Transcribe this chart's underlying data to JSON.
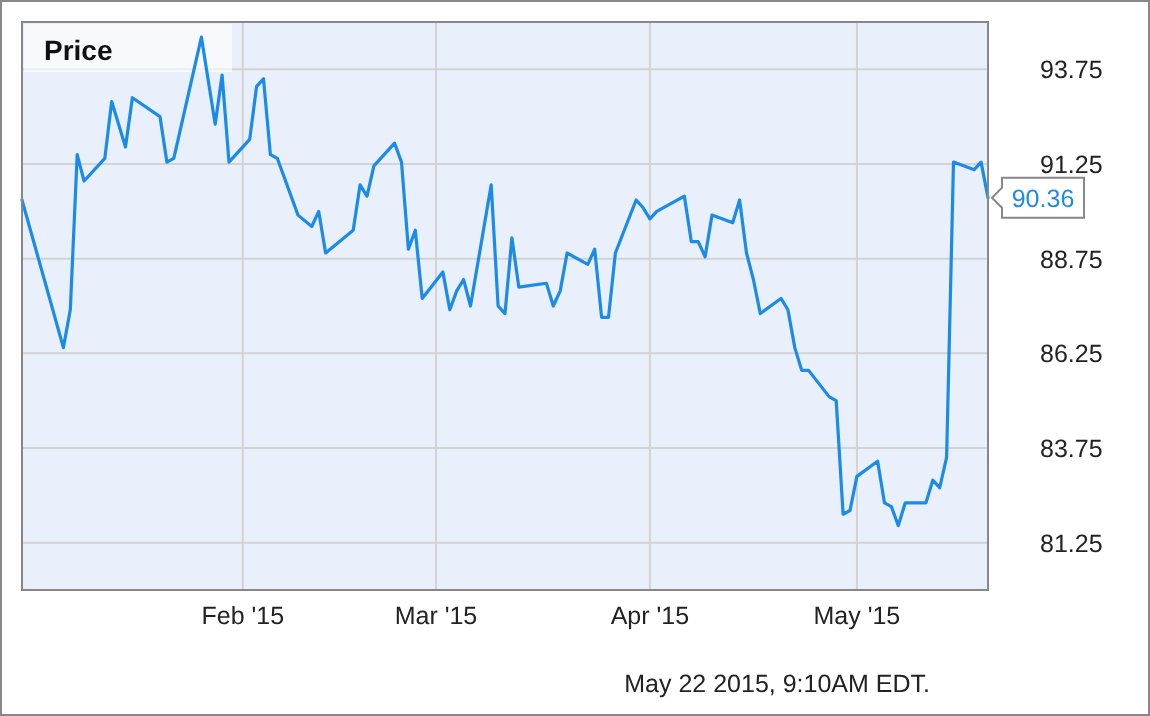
{
  "chart_data": {
    "type": "line",
    "title": "Price",
    "annotations": [
      "May 22 2015, 9:10AM EDT."
    ],
    "x": [
      "2014-12-31",
      "2015-01-06",
      "2015-01-07",
      "2015-01-08",
      "2015-01-09",
      "2015-01-12",
      "2015-01-13",
      "2015-01-15",
      "2015-01-16",
      "2015-01-20",
      "2015-01-21",
      "2015-01-22",
      "2015-01-26",
      "2015-01-28",
      "2015-01-29",
      "2015-01-30",
      "2015-02-02",
      "2015-02-03",
      "2015-02-04",
      "2015-02-05",
      "2015-02-06",
      "2015-02-09",
      "2015-02-11",
      "2015-02-12",
      "2015-02-13",
      "2015-02-17",
      "2015-02-18",
      "2015-02-19",
      "2015-02-20",
      "2015-02-23",
      "2015-02-24",
      "2015-02-25",
      "2015-02-26",
      "2015-02-27",
      "2015-03-02",
      "2015-03-03",
      "2015-03-04",
      "2015-03-05",
      "2015-03-06",
      "2015-03-09",
      "2015-03-10",
      "2015-03-11",
      "2015-03-12",
      "2015-03-13",
      "2015-03-17",
      "2015-03-18",
      "2015-03-19",
      "2015-03-20",
      "2015-03-23",
      "2015-03-24",
      "2015-03-25",
      "2015-03-26",
      "2015-03-27",
      "2015-03-30",
      "2015-03-31",
      "2015-04-01",
      "2015-04-02",
      "2015-04-06",
      "2015-04-07",
      "2015-04-08",
      "2015-04-09",
      "2015-04-10",
      "2015-04-13",
      "2015-04-14",
      "2015-04-15",
      "2015-04-16",
      "2015-04-17",
      "2015-04-20",
      "2015-04-21",
      "2015-04-22",
      "2015-04-23",
      "2015-04-24",
      "2015-04-27",
      "2015-04-28",
      "2015-04-29",
      "2015-04-30",
      "2015-05-01",
      "2015-05-04",
      "2015-05-05",
      "2015-05-06",
      "2015-05-07",
      "2015-05-08",
      "2015-05-11",
      "2015-05-12",
      "2015-05-13",
      "2015-05-14",
      "2015-05-15",
      "2015-05-18",
      "2015-05-19",
      "2015-05-20"
    ],
    "series": [
      {
        "color": "#1a8be8",
        "values": [
          90.3,
          86.4,
          87.4,
          91.5,
          90.8,
          91.4,
          92.9,
          91.7,
          93.0,
          92.5,
          91.3,
          91.4,
          94.6,
          92.3,
          93.6,
          91.3,
          91.9,
          93.3,
          93.5,
          91.5,
          91.4,
          89.9,
          89.6,
          90.0,
          88.9,
          89.5,
          90.7,
          90.4,
          91.2,
          91.8,
          91.3,
          89.0,
          89.5,
          87.7,
          88.4,
          87.4,
          87.9,
          88.2,
          87.5,
          90.7,
          87.5,
          87.3,
          89.3,
          88.0,
          88.1,
          87.5,
          87.9,
          88.9,
          88.6,
          89.0,
          87.2,
          87.2,
          88.9,
          90.3,
          90.1,
          89.8,
          90.0,
          90.4,
          89.2,
          89.2,
          88.8,
          89.9,
          89.7,
          90.3,
          88.9,
          88.2,
          87.3,
          87.7,
          87.4,
          86.4,
          85.8,
          85.8,
          85.1,
          85.0,
          82.0,
          82.1,
          83.0,
          83.4,
          82.3,
          82.2,
          81.7,
          82.3,
          82.3,
          82.9,
          82.7,
          83.5,
          91.3,
          91.1,
          91.3,
          90.36
        ],
        "value_labels": [
          null,
          null,
          null,
          null,
          null,
          null,
          null,
          null,
          null,
          null,
          null,
          null,
          null,
          null,
          null,
          null,
          null,
          null,
          null,
          null,
          null,
          null,
          null,
          null,
          null,
          null,
          null,
          null,
          null,
          null,
          null,
          null,
          null,
          null,
          null,
          null,
          null,
          null,
          null,
          null,
          null,
          null,
          null,
          null,
          null,
          null,
          null,
          null,
          null,
          null,
          null,
          null,
          null,
          null,
          null,
          null,
          null,
          null,
          null,
          null,
          null,
          null,
          null,
          null,
          null,
          null,
          null,
          null,
          null,
          null,
          null,
          null,
          null,
          null,
          null,
          null,
          null,
          null,
          null,
          null,
          null,
          null,
          null,
          null,
          null,
          null,
          null,
          null,
          null,
          "90.36"
        ]
      }
    ],
    "xlim": [
      "2014-12-31",
      "2015-05-20"
    ],
    "xticks": [
      {
        "value": "2015-02-01",
        "label": "Feb '15"
      },
      {
        "value": "2015-03-01",
        "label": "Mar '15"
      },
      {
        "value": "2015-04-01",
        "label": "Apr '15"
      },
      {
        "value": "2015-05-01",
        "label": "May '15"
      }
    ],
    "ylim": [
      80,
      95
    ],
    "yticks": [
      81.25,
      83.75,
      86.25,
      88.75,
      91.25,
      93.75
    ],
    "grid": true,
    "marker": "none",
    "line_style": "solid"
  }
}
